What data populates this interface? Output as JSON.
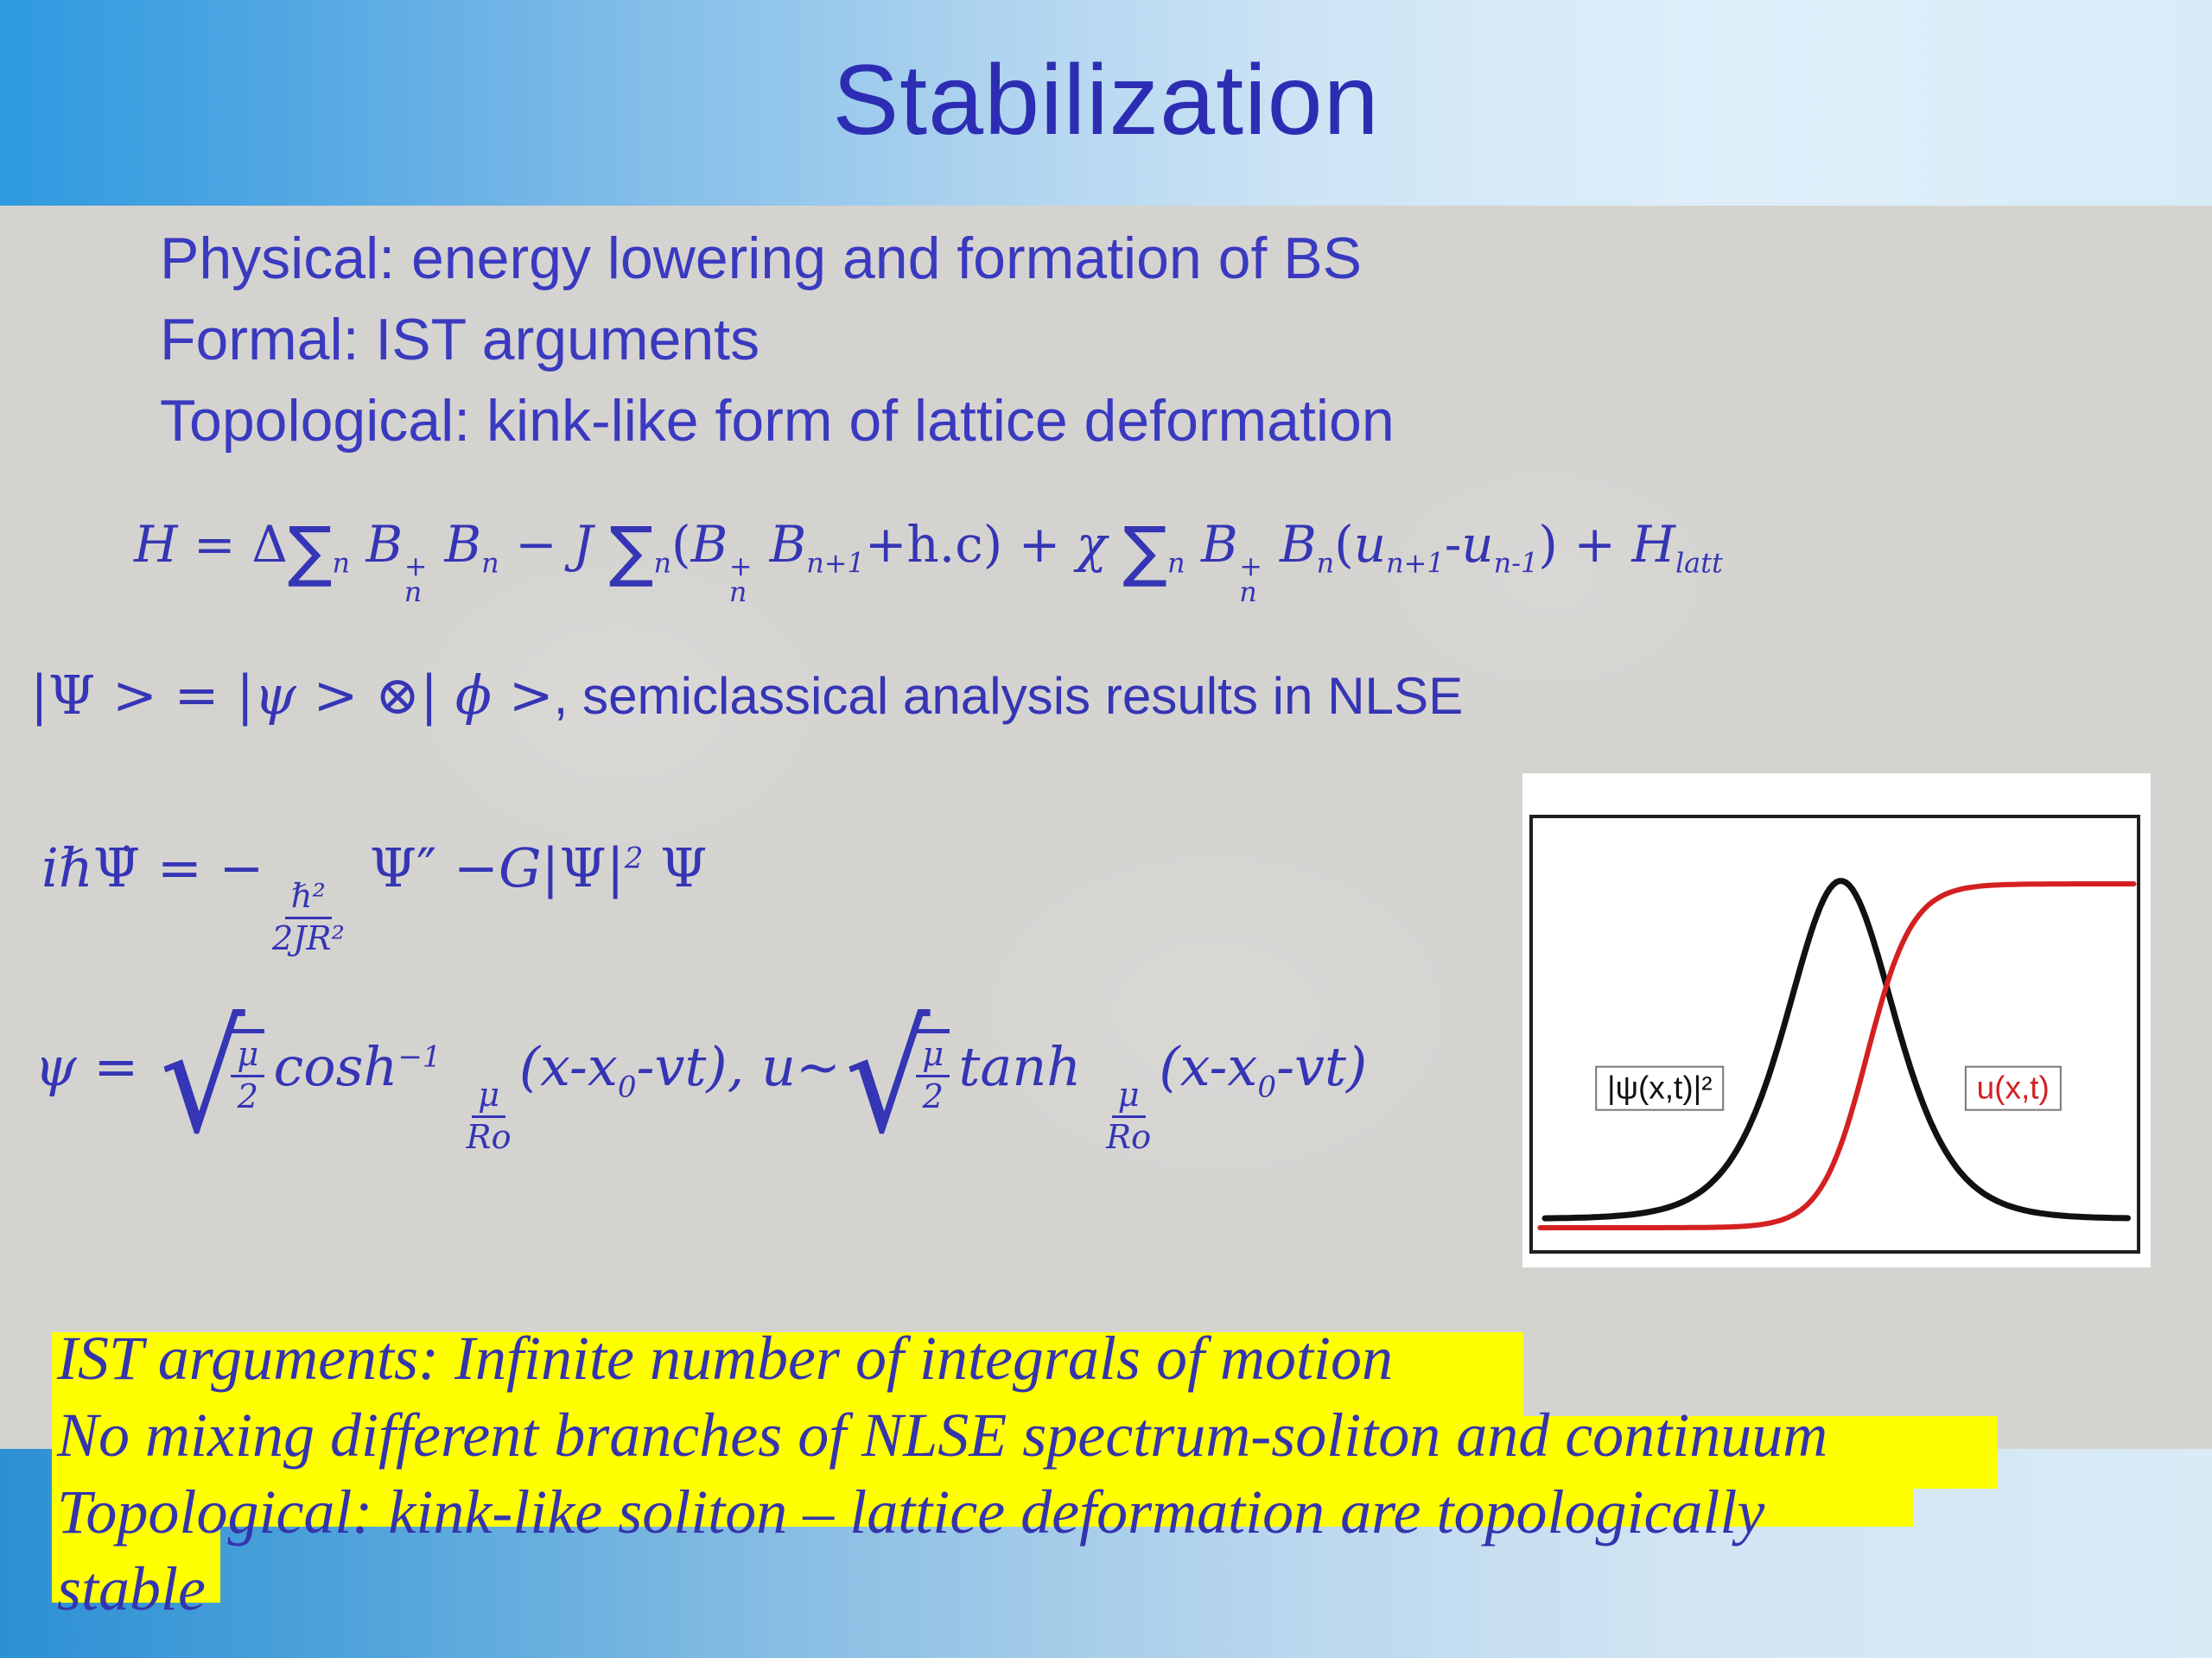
{
  "slide": {
    "title": "Stabilization",
    "bullets": [
      "Physical: energy lowering and formation of BS",
      "Formal: IST arguments",
      "Topological: kink-like form of lattice deformation"
    ],
    "highlights": [
      "IST arguments: Infinite number of integrals of motion",
      "No mixing different branches of NLSE spectrum-soliton and continuum",
      "Topological: kink-like soliton – lattice deformation are topologically",
      "stable"
    ]
  },
  "equations": {
    "hamiltonian": [
      {
        "t": "H "
      },
      {
        "up": "= Δ"
      },
      {
        "sum": "∑"
      },
      {
        "sub": "n"
      },
      {
        "t": " B"
      },
      {
        "ss": [
          "+",
          "n"
        ]
      },
      {
        "t": " B"
      },
      {
        "sub": "n"
      },
      {
        "up": " − "
      },
      {
        "t": "J "
      },
      {
        "sum": "∑"
      },
      {
        "sub": "n"
      },
      {
        "up": "("
      },
      {
        "t": "B"
      },
      {
        "ss": [
          "+",
          "n"
        ]
      },
      {
        "t": " B"
      },
      {
        "sub": "n+1"
      },
      {
        "up": "+h.c) + "
      },
      {
        "t": "χ "
      },
      {
        "sum": "∑"
      },
      {
        "sub": "n"
      },
      {
        "t": " B"
      },
      {
        "ss": [
          "+",
          "n"
        ]
      },
      {
        "t": " B"
      },
      {
        "sub": "n"
      },
      {
        "up": "("
      },
      {
        "t": "u"
      },
      {
        "sub": "n+1"
      },
      {
        "up": "-"
      },
      {
        "t": "u"
      },
      {
        "sub": "n-1"
      },
      {
        "up": ") + "
      },
      {
        "t": "H"
      },
      {
        "sub": "latt"
      }
    ],
    "wavefunction": [
      {
        "up": "|Ψ > = |"
      },
      {
        "t": "ψ "
      },
      {
        "up": "> ⊗| "
      },
      {
        "t": "ϕ "
      },
      {
        "up": ">"
      },
      {
        "sans": ", semiclassical analysis results in NLSE"
      }
    ],
    "nlse": [
      {
        "t": "iℏ"
      },
      {
        "up": "Ψ̇"
      },
      {
        "up": " = −"
      },
      {
        "frac": [
          "ℏ²",
          "2JR²"
        ]
      },
      {
        "up": " Ψ″ −"
      },
      {
        "t": "G"
      },
      {
        "up": "|Ψ|"
      },
      {
        "sup": "2"
      },
      {
        "up": " Ψ"
      }
    ],
    "soliton": [
      {
        "t": "ψ "
      },
      {
        "up": "= "
      },
      {
        "sq": [
          "μ",
          "2"
        ]
      },
      {
        "t": "cosh"
      },
      {
        "sup": "−1"
      },
      {
        "t": " "
      },
      {
        "frac": [
          "μ",
          "Ro"
        ]
      },
      {
        "t": "(x-x"
      },
      {
        "sub": "0"
      },
      {
        "t": "-vt), "
      },
      {
        "t": "u"
      },
      {
        "up": "~"
      },
      {
        "sq": [
          "μ",
          "2"
        ]
      },
      {
        "t": "tanh "
      },
      {
        "frac": [
          "μ",
          "Ro"
        ]
      },
      {
        "t": "(x-x"
      },
      {
        "sub": "0"
      },
      {
        "t": "-vt)"
      }
    ]
  },
  "chart_data": {
    "type": "line",
    "title": "",
    "xlabel": "",
    "ylabel": "",
    "axes_visible": false,
    "frame": true,
    "legend_position": "inline-boxed-labels",
    "note": "Qualitative inset: bell-shaped soliton envelope |ψ(x,t)|² (black) and kink-like lattice deformation u(x,t) (red sigmoid); no ticks or axis labels shown. Coordinates normalized to plot box, y measured downward from top.",
    "series": [
      {
        "name": "|ψ(x,t)|²",
        "color": "#111111",
        "shape": "sech2",
        "center": 0.51,
        "width": 0.12,
        "baseline": 0.927,
        "peak": 0.145,
        "xmin": 0.02,
        "xmax": 0.985,
        "stroke_width": 7
      },
      {
        "name": "u(x,t)",
        "color": "#d42020",
        "shape": "tanh_kink",
        "center": 0.553,
        "width": 0.075,
        "low": 0.948,
        "high": 0.152,
        "xmin": 0.012,
        "xmax": 0.995,
        "stroke_width": 6
      }
    ],
    "labels": [
      {
        "text": "|ψ(x,t)|²",
        "color": "#111111",
        "x": 0.21,
        "y": 0.625,
        "boxed": true
      },
      {
        "text": "u(x,t)",
        "color": "#d42020",
        "x": 0.795,
        "y": 0.625,
        "boxed": true
      }
    ]
  },
  "colors": {
    "title_text": "#2d2db4",
    "body_text": "#3a3ac0",
    "equation_text": "#3535b5",
    "highlight_text": "#3434ad",
    "highlight_bg": "#ffff00",
    "curve_black": "#111111",
    "curve_red": "#d42020",
    "band_blue_left": "#2e9adf",
    "band_blue_right": "#d8ebf7",
    "content_bg": "#d5d3d0",
    "chart_bg": "#ffffff"
  }
}
